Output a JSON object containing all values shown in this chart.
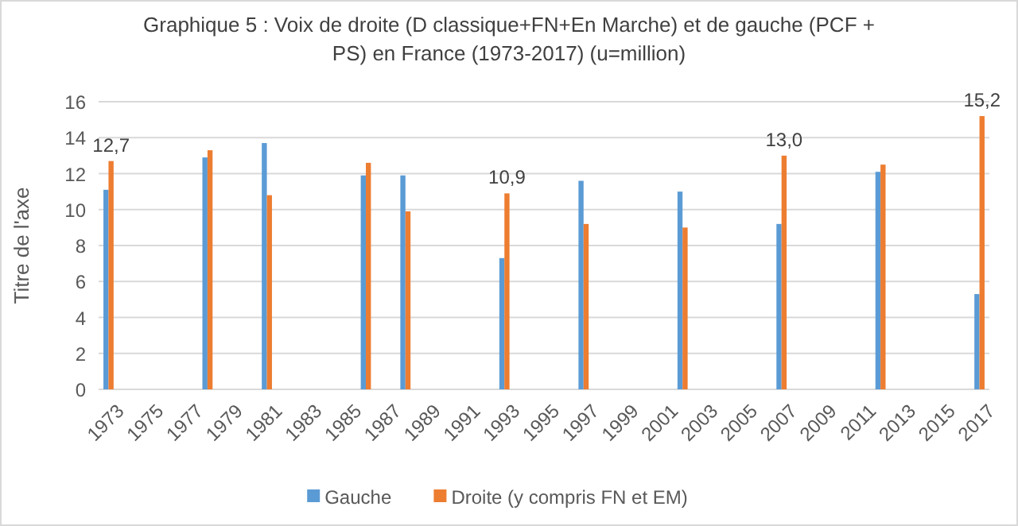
{
  "chart_data": {
    "type": "bar",
    "title": "Graphique 5 : Voix de droite (D classique+FN+En Marche) et de gauche (PCF + PS) en France (1973-2017) (u=million)",
    "ylabel": "Titre de l'axe",
    "x": [
      1973,
      1978,
      1981,
      1986,
      1988,
      1993,
      1997,
      2002,
      2007,
      2012,
      2017
    ],
    "series": [
      {
        "name": "Gauche",
        "color": "#5b9bd5",
        "values": [
          11.1,
          12.9,
          13.7,
          11.9,
          11.9,
          7.3,
          11.6,
          11.0,
          9.2,
          12.1,
          5.3
        ]
      },
      {
        "name": "Droite (y compris FN et EM)",
        "color": "#ed7d31",
        "values": [
          12.7,
          13.3,
          10.8,
          12.6,
          9.9,
          10.9,
          9.2,
          9.0,
          13.0,
          12.5,
          15.2
        ],
        "value_labels": [
          "12,7",
          null,
          null,
          null,
          null,
          "10,9",
          null,
          null,
          "13,0",
          null,
          "15,2"
        ]
      }
    ],
    "xlim": [
      1972.5,
      2017.5
    ],
    "xticks": [
      1973,
      1975,
      1977,
      1979,
      1981,
      1983,
      1985,
      1987,
      1989,
      1991,
      1993,
      1995,
      1997,
      1999,
      2001,
      2003,
      2005,
      2007,
      2009,
      2011,
      2013,
      2015,
      2017
    ],
    "ylim": [
      0,
      16
    ],
    "yticks": [
      0,
      2,
      4,
      6,
      8,
      10,
      12,
      14,
      16
    ],
    "grid": "y",
    "legend": "bottom"
  }
}
